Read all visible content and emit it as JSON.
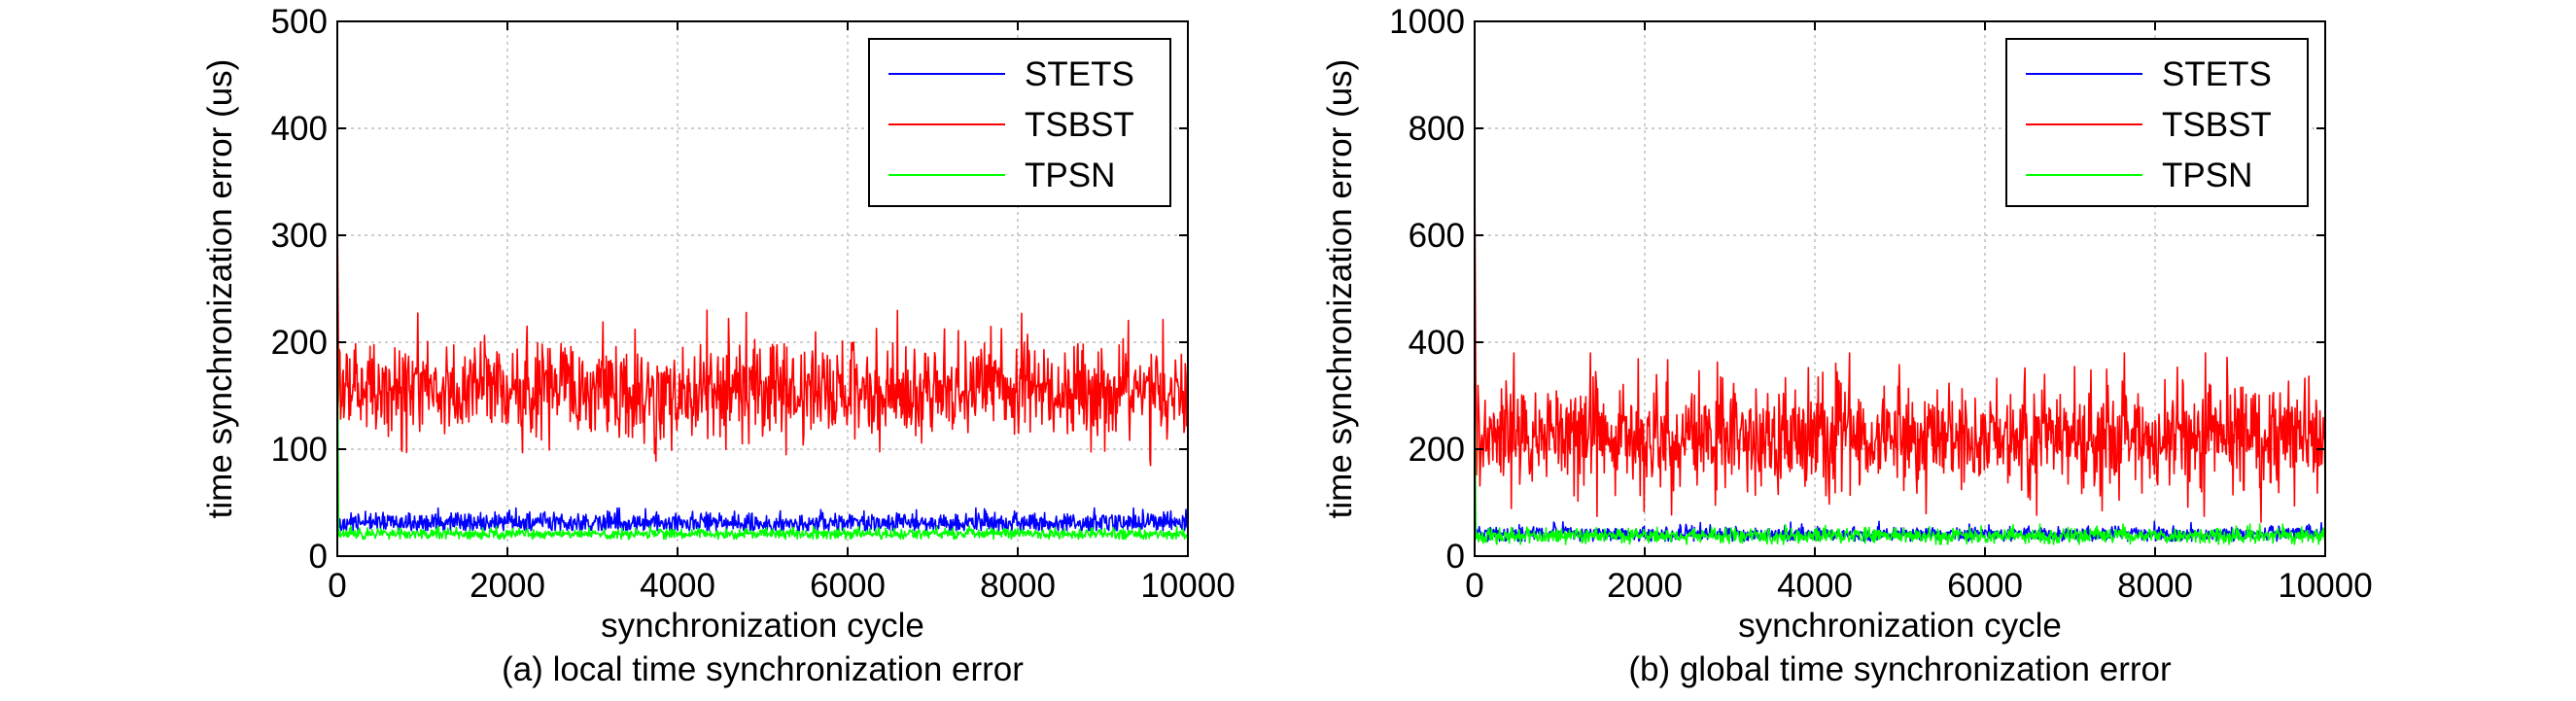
{
  "chart_data": [
    {
      "type": "line",
      "caption": "(a) local time synchronization error",
      "xlabel": "synchronization cycle",
      "ylabel": "time synchronization error (us)",
      "xlim": [
        0,
        10000
      ],
      "ylim": [
        0,
        500
      ],
      "xticks": [
        0,
        2000,
        4000,
        6000,
        8000,
        10000
      ],
      "yticks": [
        0,
        100,
        200,
        300,
        400,
        500
      ],
      "grid": true,
      "legend_position": "top-right",
      "series": [
        {
          "name": "STETS",
          "color": "#0000ff",
          "initial_spike": 40,
          "mean": 31,
          "spread": 5,
          "range": [
            24,
            45
          ]
        },
        {
          "name": "TSBST",
          "color": "#ff0000",
          "initial_spike": 330,
          "mean": 155,
          "spread": 22,
          "range": [
            80,
            260
          ]
        },
        {
          "name": "TPSN",
          "color": "#00ff00",
          "initial_spike": 245,
          "mean": 21,
          "spread": 2.5,
          "range": [
            16,
            28
          ]
        }
      ]
    },
    {
      "type": "line",
      "caption": "(b) global time synchronization error",
      "xlabel": "synchronization cycle",
      "ylabel": "time synchronization error (us)",
      "xlim": [
        0,
        10000
      ],
      "ylim": [
        0,
        1000
      ],
      "xticks": [
        0,
        2000,
        4000,
        6000,
        8000,
        10000
      ],
      "yticks": [
        0,
        200,
        400,
        600,
        800,
        1000
      ],
      "grid": true,
      "legend_position": "top-right",
      "series": [
        {
          "name": "STETS",
          "color": "#0000ff",
          "initial_spike": 70,
          "mean": 42,
          "spread": 7,
          "range": [
            28,
            65
          ]
        },
        {
          "name": "TSBST",
          "color": "#ff0000",
          "initial_spike": 730,
          "mean": 225,
          "spread": 48,
          "range": [
            60,
            380
          ]
        },
        {
          "name": "TPSN",
          "color": "#00ff00",
          "initial_spike": 330,
          "mean": 38,
          "spread": 7,
          "range": [
            22,
            60
          ]
        }
      ]
    }
  ]
}
